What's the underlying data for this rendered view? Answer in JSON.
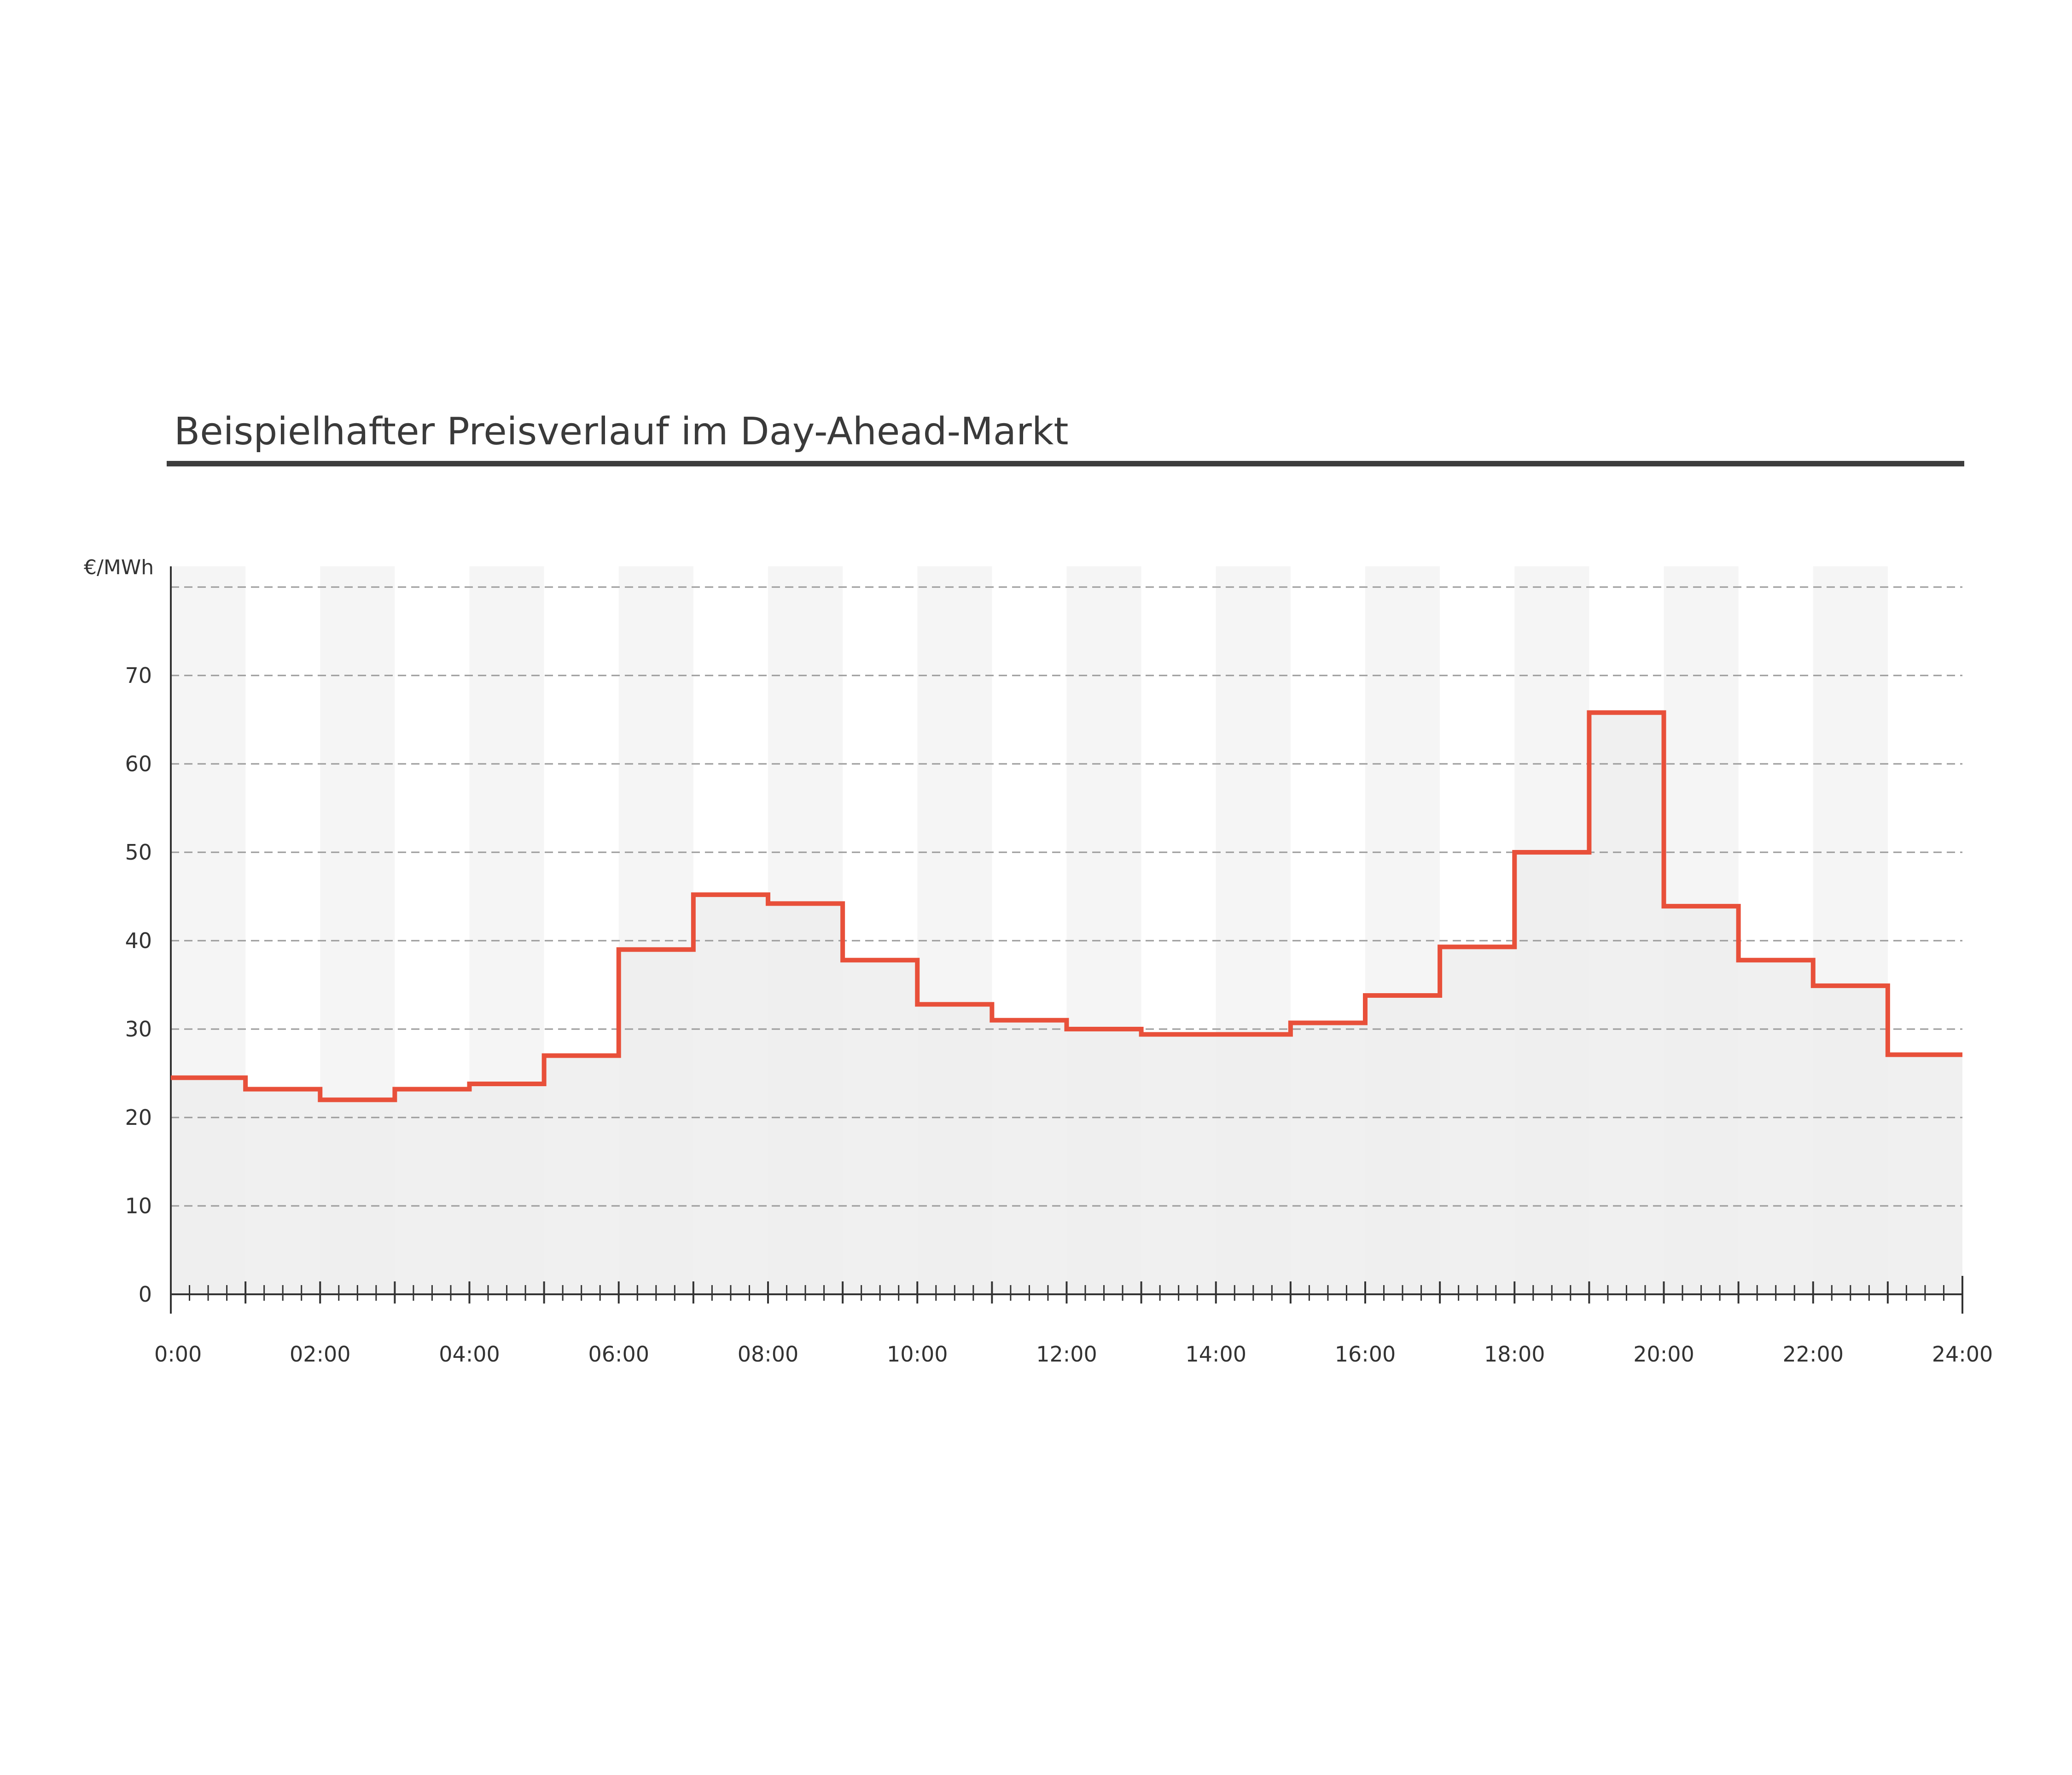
{
  "title": "Beispielhafter Preisverlauf im Day-Ahead-Markt",
  "colors": {
    "line": "#e8503a",
    "area": "#ededed",
    "band": "#f5f5f5",
    "grid": "#9a9a9a",
    "axis": "#333333",
    "title_rule": "#3d3d3d"
  },
  "chart_data": {
    "type": "line",
    "step": true,
    "ylabel": "€/MWh",
    "xlabel": "",
    "ylim": [
      0,
      80
    ],
    "xlim": [
      0,
      24
    ],
    "grid": true,
    "y_ticks": [
      0,
      10,
      20,
      30,
      40,
      50,
      60,
      70,
      80
    ],
    "y_tick_labels": [
      "0",
      "10",
      "20",
      "30",
      "40",
      "50",
      "60",
      "70",
      ""
    ],
    "x_ticks": [
      0,
      2,
      4,
      6,
      8,
      10,
      12,
      14,
      16,
      18,
      20,
      22,
      24
    ],
    "x_tick_labels": [
      "0:00",
      "02:00",
      "04:00",
      "06:00",
      "08:00",
      "10:00",
      "12:00",
      "14:00",
      "16:00",
      "18:00",
      "20:00",
      "22:00",
      "24:00"
    ],
    "hours": [
      0,
      1,
      2,
      3,
      4,
      5,
      6,
      7,
      8,
      9,
      10,
      11,
      12,
      13,
      14,
      15,
      16,
      17,
      18,
      19,
      20,
      21,
      22,
      23
    ],
    "values": [
      24.5,
      23.2,
      22.0,
      23.2,
      23.8,
      27.0,
      39.0,
      45.2,
      44.2,
      37.8,
      32.8,
      31.0,
      30.0,
      29.4,
      29.4,
      30.7,
      33.8,
      39.3,
      50.0,
      65.8,
      43.9,
      37.8,
      34.9,
      27.1
    ]
  }
}
